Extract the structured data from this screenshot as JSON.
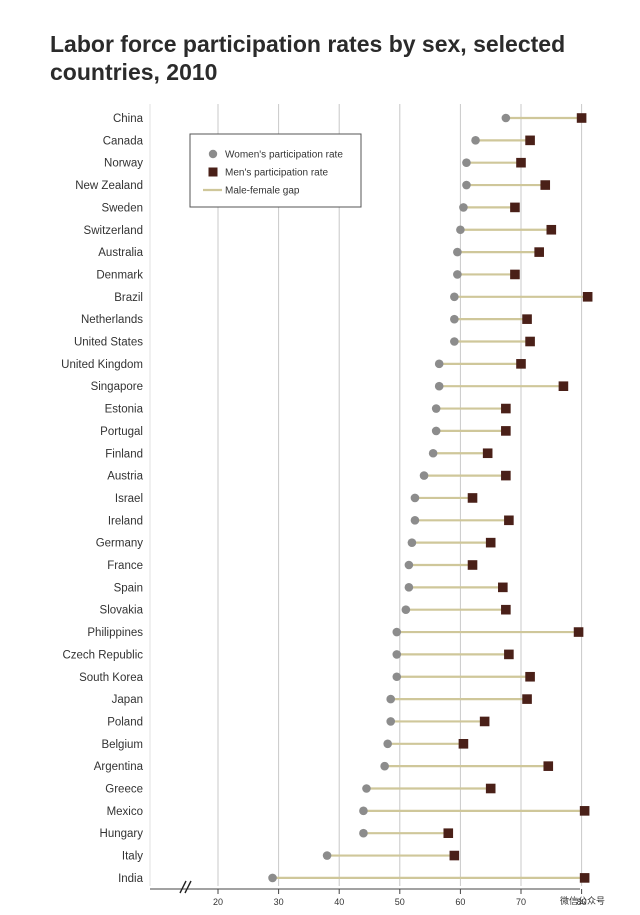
{
  "title": "Labor force participation rates by sex, selected countries, 2010",
  "chart_data": {
    "type": "dot-range",
    "title": "Labor force participation rates by sex, selected countries, 2010",
    "xlabel": "",
    "ylabel": "",
    "xlim": [
      20,
      80
    ],
    "x_ticks": [
      "20",
      "30",
      "40",
      "50",
      "60",
      "70",
      "80"
    ],
    "axis_break": true,
    "grid": "vertical",
    "legend_position": "top-right",
    "legend": [
      {
        "key": "women",
        "label": "Women's participation rate",
        "marker": "circle",
        "color": "#8c8c8c"
      },
      {
        "key": "men",
        "label": "Men's participation rate",
        "marker": "square",
        "color": "#4a2018"
      },
      {
        "key": "gap",
        "label": "Male-female gap",
        "marker": "line",
        "color": "#cfc79a"
      }
    ],
    "categories": [
      "China",
      "Canada",
      "Norway",
      "New Zealand",
      "Sweden",
      "Switzerland",
      "Australia",
      "Denmark",
      "Brazil",
      "Netherlands",
      "United States",
      "United Kingdom",
      "Singapore",
      "Estonia",
      "Portugal",
      "Finland",
      "Austria",
      "Israel",
      "Ireland",
      "Germany",
      "France",
      "Spain",
      "Slovakia",
      "Philippines",
      "Czech Republic",
      "South Korea",
      "Japan",
      "Poland",
      "Belgium",
      "Argentina",
      "Greece",
      "Mexico",
      "Hungary",
      "Italy",
      "India"
    ],
    "women": [
      67.5,
      62.5,
      61.0,
      61.0,
      60.5,
      60.0,
      59.5,
      59.5,
      59.0,
      59.0,
      59.0,
      56.5,
      56.5,
      56.0,
      56.0,
      55.5,
      54.0,
      52.5,
      52.5,
      52.0,
      51.5,
      51.5,
      51.0,
      49.5,
      49.5,
      49.5,
      48.5,
      48.5,
      48.0,
      47.5,
      44.5,
      44.0,
      44.0,
      38.0,
      29.0
    ],
    "men": [
      80.0,
      71.5,
      70.0,
      74.0,
      69.0,
      75.0,
      73.0,
      69.0,
      81.0,
      71.0,
      71.5,
      70.0,
      77.0,
      67.5,
      67.5,
      64.5,
      67.5,
      62.0,
      68.0,
      65.0,
      62.0,
      67.0,
      67.5,
      79.5,
      68.0,
      71.5,
      71.0,
      64.0,
      60.5,
      74.5,
      65.0,
      80.5,
      58.0,
      59.0,
      80.5
    ],
    "watermark": "微信公众号"
  }
}
